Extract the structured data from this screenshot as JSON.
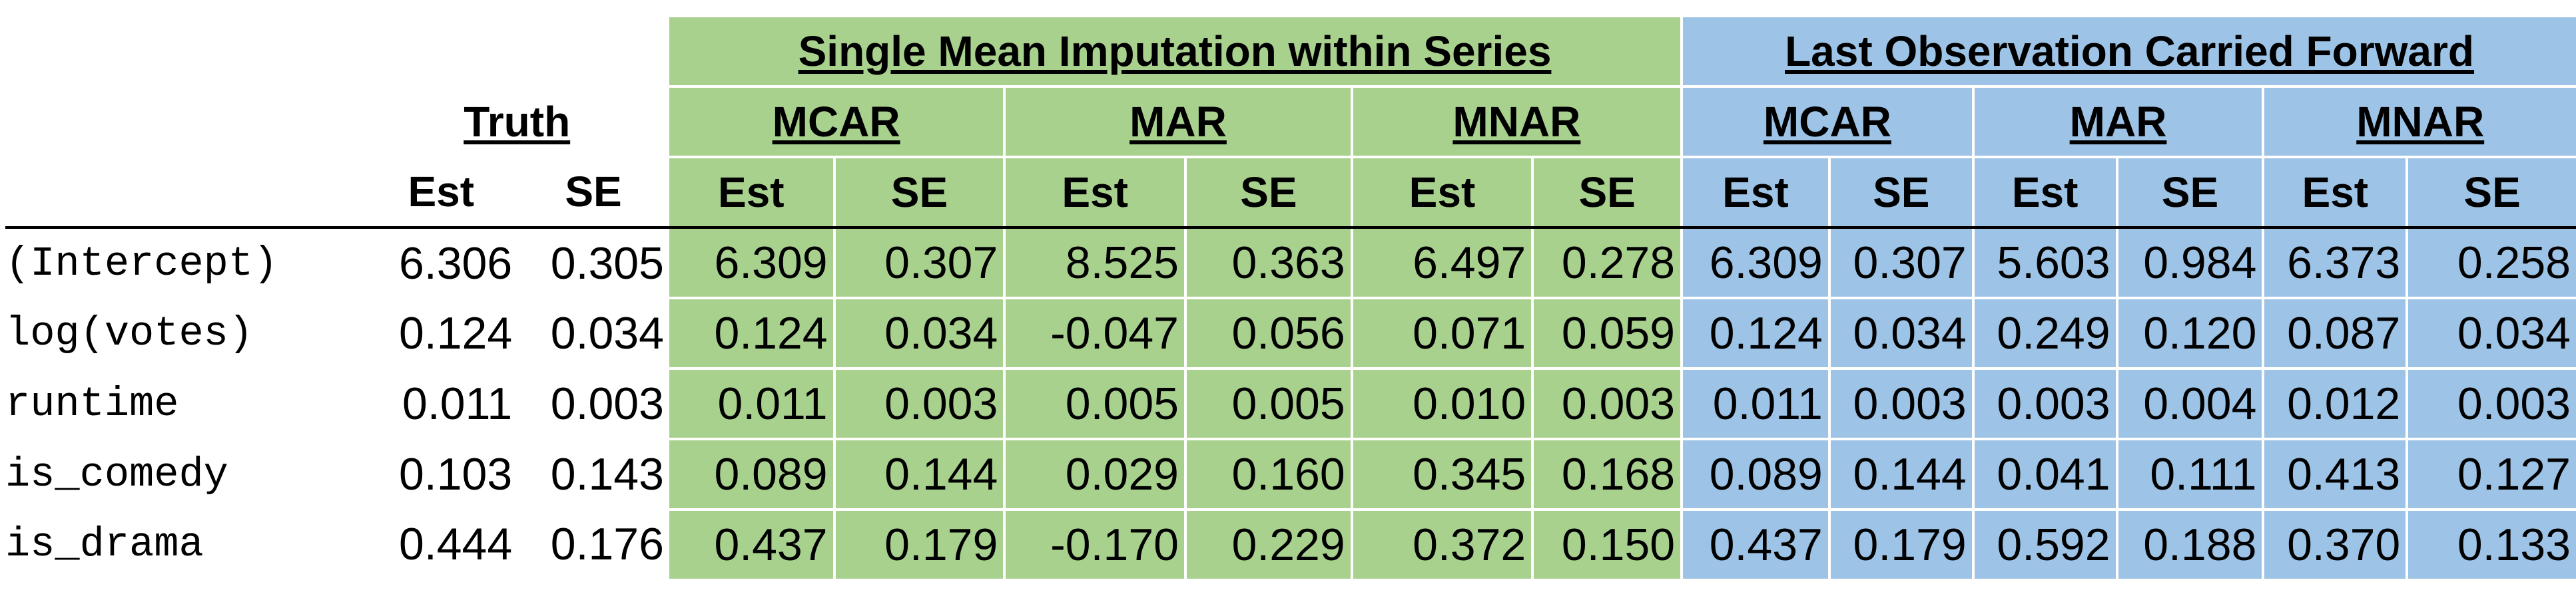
{
  "groups": {
    "truth": "Truth",
    "smi": "Single Mean Imputation within Series",
    "locf": "Last Observation Carried Forward"
  },
  "mechanisms": [
    "MCAR",
    "MAR",
    "MNAR"
  ],
  "columns": {
    "est": "Est",
    "se": "SE"
  },
  "rows": [
    {
      "name": "(Intercept)",
      "values": [
        "6.306",
        "0.305",
        "6.309",
        "0.307",
        "8.525",
        "0.363",
        "6.497",
        "0.278",
        "6.309",
        "0.307",
        "5.603",
        "0.984",
        "6.373",
        "0.258"
      ]
    },
    {
      "name": "log(votes)",
      "values": [
        "0.124",
        "0.034",
        "0.124",
        "0.034",
        "-0.047",
        "0.056",
        "0.071",
        "0.059",
        "0.124",
        "0.034",
        "0.249",
        "0.120",
        "0.087",
        "0.034"
      ]
    },
    {
      "name": "runtime",
      "values": [
        "0.011",
        "0.003",
        "0.011",
        "0.003",
        "0.005",
        "0.005",
        "0.010",
        "0.003",
        "0.011",
        "0.003",
        "0.003",
        "0.004",
        "0.012",
        "0.003"
      ]
    },
    {
      "name": "is_comedy",
      "values": [
        "0.103",
        "0.143",
        "0.089",
        "0.144",
        "0.029",
        "0.160",
        "0.345",
        "0.168",
        "0.089",
        "0.144",
        "0.041",
        "0.111",
        "0.413",
        "0.127"
      ]
    },
    {
      "name": "is_drama",
      "values": [
        "0.444",
        "0.176",
        "0.437",
        "0.179",
        "-0.170",
        "0.229",
        "0.372",
        "0.150",
        "0.437",
        "0.179",
        "0.592",
        "0.188",
        "0.370",
        "0.133"
      ]
    }
  ],
  "colors": {
    "green": "#a9d18e",
    "blue": "#9dc3e6",
    "rule": "#000000"
  }
}
